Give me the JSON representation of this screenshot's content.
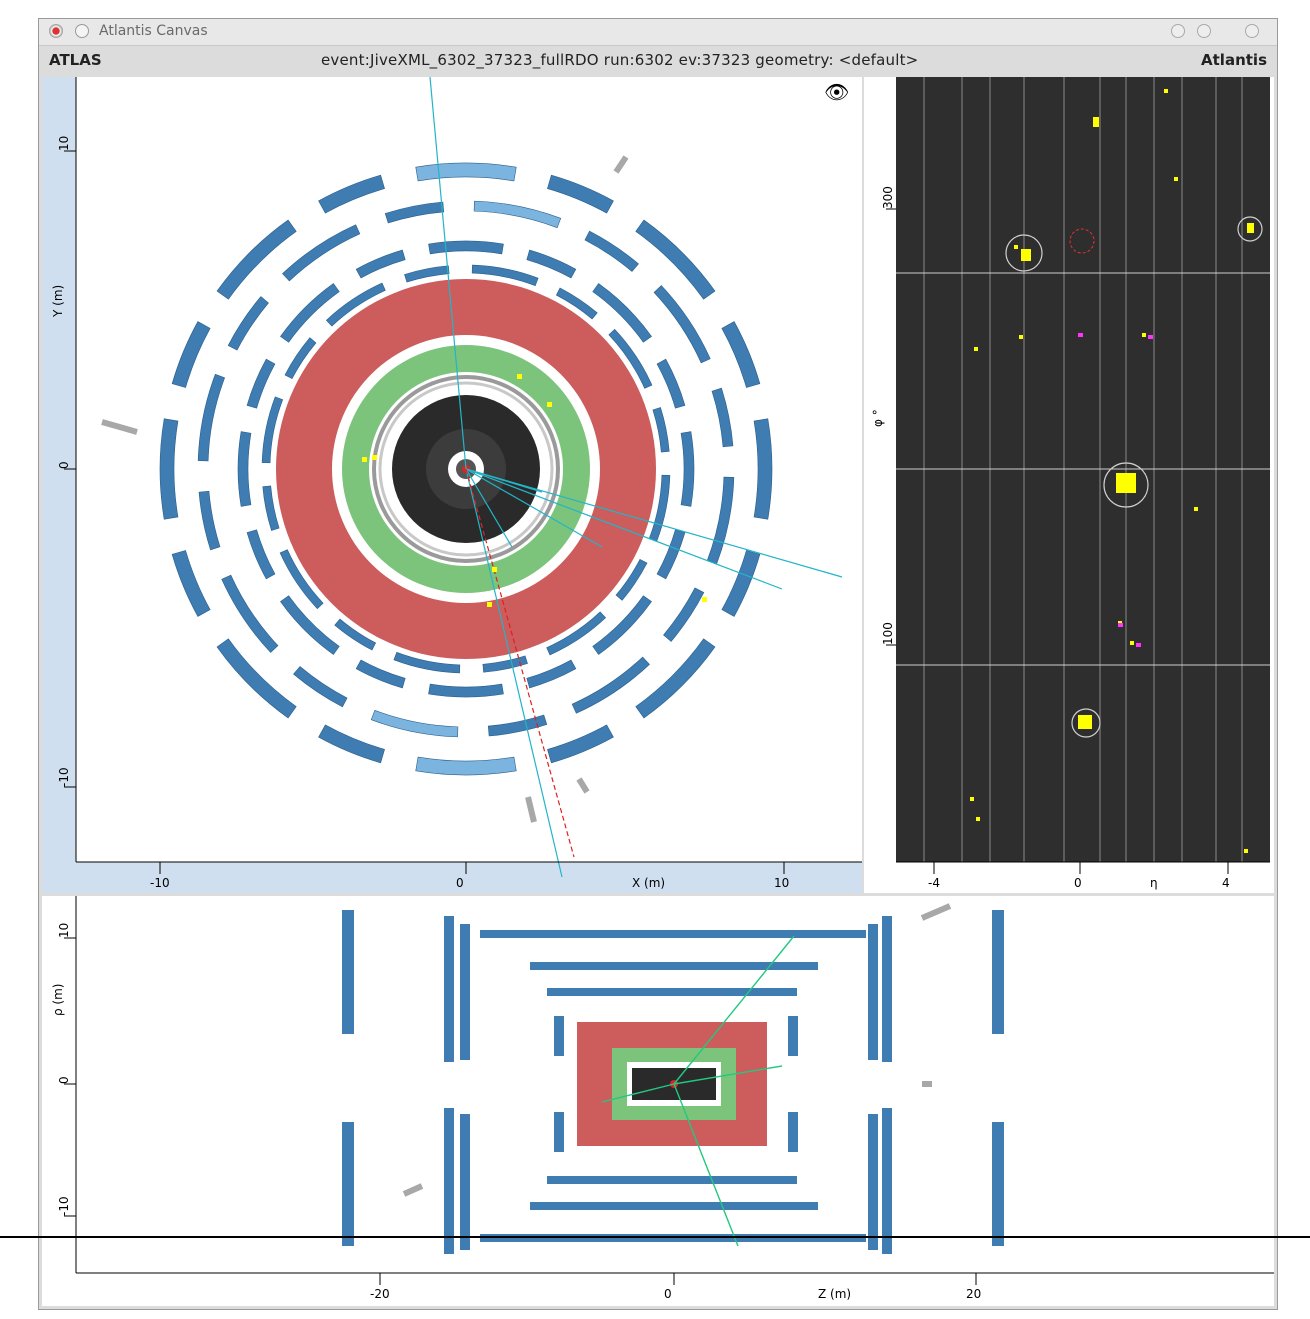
{
  "window": {
    "title": "Atlantis Canvas"
  },
  "infobar": {
    "left": "ATLAS",
    "event": "event:JiveXML_6302_37323_fullRDO run:6302 ev:37323  geometry: <default>",
    "right": "Atlantis"
  },
  "panel_xy": {
    "xlabel": "X (m)",
    "ylabel": "Y (m)",
    "xticks": [
      "-10",
      "0",
      "10"
    ],
    "yticks": [
      "10",
      "0",
      "-10"
    ]
  },
  "panel_lego": {
    "xlabel": "η",
    "ylabel": "φ °",
    "xticks": [
      "-4",
      "0",
      "4"
    ],
    "yticks": [
      "300",
      "100"
    ]
  },
  "panel_rz": {
    "xlabel": "Z (m)",
    "ylabel": "ρ (m)",
    "xticks": [
      "-20",
      "0",
      "20"
    ],
    "yticks": [
      "10",
      "0",
      "-10"
    ]
  },
  "colors": {
    "muon": "#3e7cb1",
    "muon_light": "#7cb4e0",
    "hcal": "#cd5c5c",
    "ecal": "#7cc47c",
    "lego_bg": "#2e2e2e",
    "energy": "#ffff00"
  },
  "icons": {
    "close": "close-icon",
    "minimize": "minimize-icon",
    "fisheye": "fisheye-icon"
  }
}
